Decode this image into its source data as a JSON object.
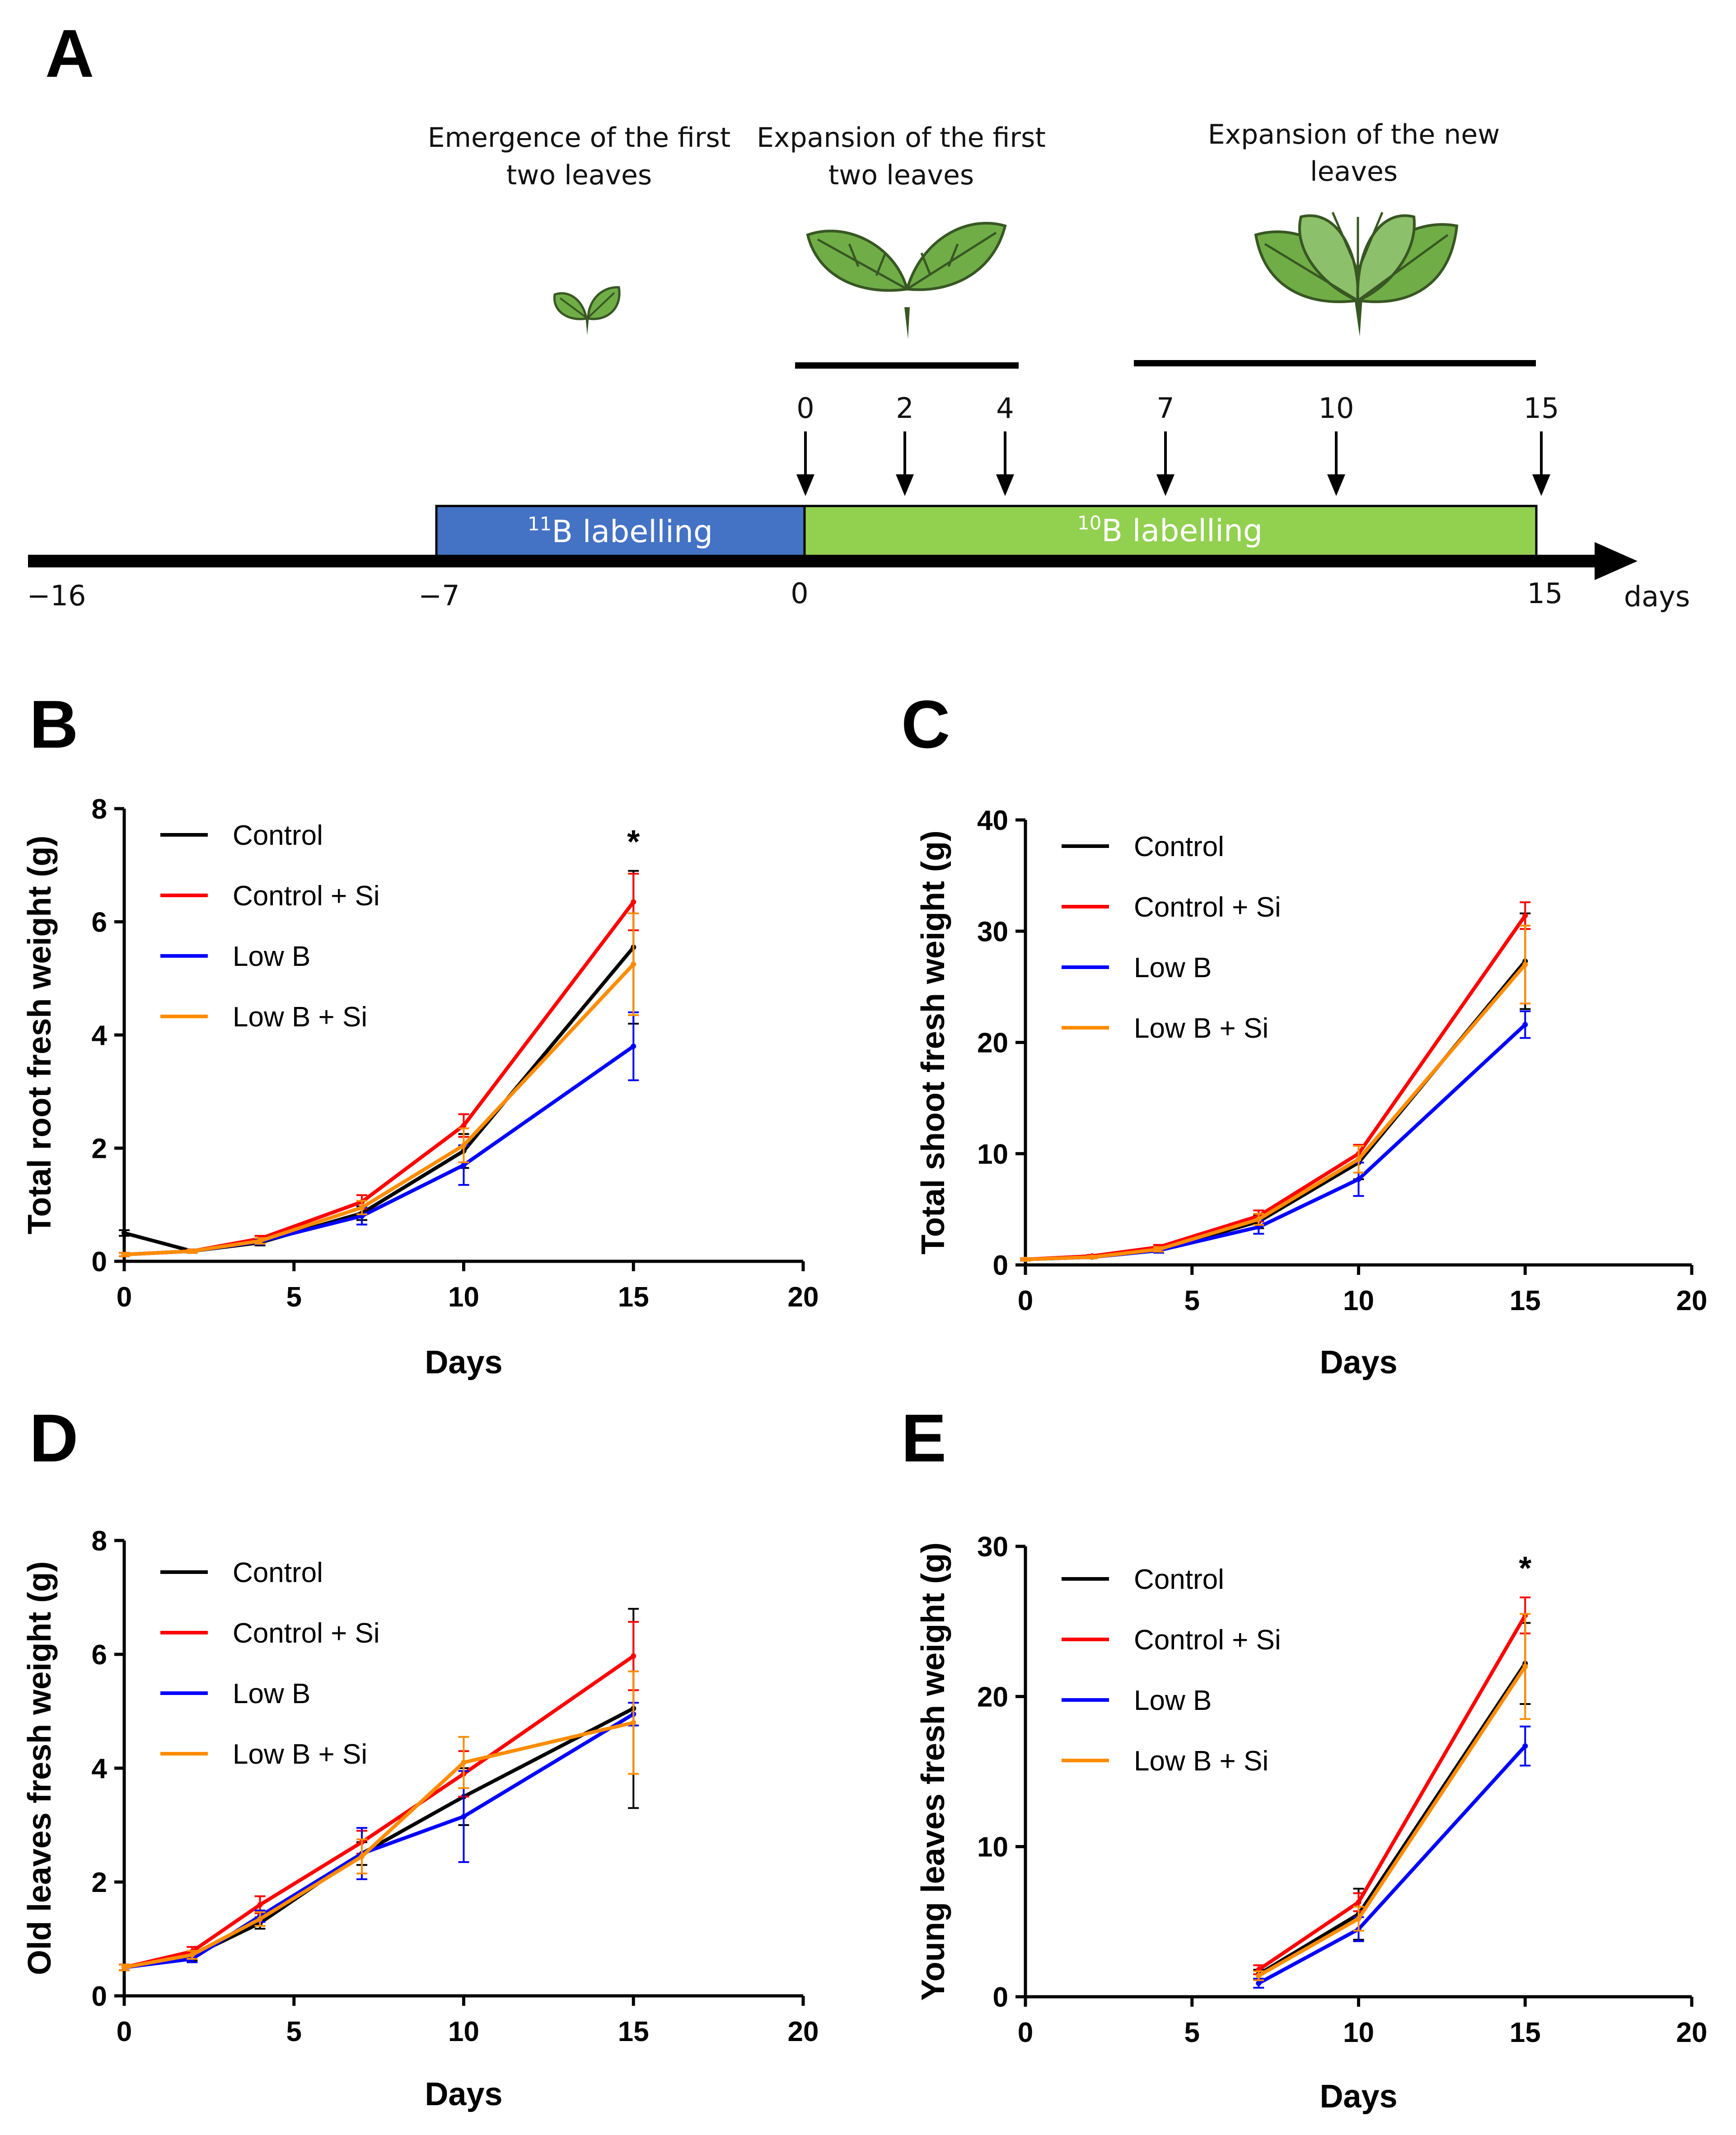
{
  "panel_labels": {
    "A": "A",
    "B": "B",
    "C": "C",
    "D": "D",
    "E": "E"
  },
  "timeline": {
    "stage1": [
      "Emergence of the first",
      "two leaves"
    ],
    "stage2": [
      "Expansion of the first",
      "two leaves"
    ],
    "stage3": [
      "Expansion of the new",
      "leaves"
    ],
    "sampling_days": [
      "0",
      "2",
      "4",
      "7",
      "10",
      "15"
    ],
    "axis_ticks": [
      "−16",
      "−7",
      "0",
      "15"
    ],
    "axis_unit": "days",
    "label_11b_sup": "11",
    "label_11b_rest": "B labelling",
    "label_10b_sup": "10",
    "label_10b_rest": "B labelling",
    "colors": {
      "b11": "#4472c4",
      "b10": "#92d050",
      "leaf": "#70ad47",
      "leaf_dark": "#385723"
    }
  },
  "chart_data": [
    {
      "id": "B",
      "type": "line",
      "xlabel": "Days",
      "ylabel": "Total root fresh weight (g)",
      "xlim": [
        0,
        20
      ],
      "ylim": [
        0,
        8
      ],
      "xticks": [
        "0",
        "5",
        "10",
        "15",
        "20"
      ],
      "yticks": [
        "0",
        "2",
        "4",
        "6",
        "8"
      ],
      "annotations": [
        {
          "text": "*",
          "x": 15
        }
      ],
      "series": [
        {
          "name": "Control",
          "color": "#000000",
          "x": [
            0,
            2,
            4,
            7,
            10,
            15
          ],
          "values": [
            0.5,
            0.18,
            0.33,
            0.85,
            1.95,
            5.55
          ],
          "err": [
            0.05,
            0.03,
            0.05,
            0.12,
            0.3,
            1.35
          ]
        },
        {
          "name": "Control + Si",
          "color": "#ff0000",
          "x": [
            0,
            2,
            4,
            7,
            10,
            15
          ],
          "values": [
            0.12,
            0.18,
            0.4,
            1.05,
            2.4,
            6.35
          ],
          "err": [
            0.03,
            0.03,
            0.05,
            0.12,
            0.2,
            0.5
          ]
        },
        {
          "name": "Low B",
          "color": "#0000ff",
          "x": [
            0,
            2,
            4,
            7,
            10,
            15
          ],
          "values": [
            0.12,
            0.18,
            0.35,
            0.8,
            1.7,
            3.8
          ],
          "err": [
            0.03,
            0.03,
            0.05,
            0.15,
            0.35,
            0.6
          ]
        },
        {
          "name": "Low B + Si",
          "color": "#ff8c00",
          "x": [
            0,
            2,
            4,
            7,
            10,
            15
          ],
          "values": [
            0.12,
            0.18,
            0.36,
            0.95,
            2.05,
            5.25
          ],
          "err": [
            0.03,
            0.03,
            0.05,
            0.12,
            0.3,
            0.9
          ]
        }
      ]
    },
    {
      "id": "C",
      "type": "line",
      "xlabel": "Days",
      "ylabel": "Total shoot fresh weight (g)",
      "xlim": [
        0,
        20
      ],
      "ylim": [
        0,
        40
      ],
      "xticks": [
        "0",
        "5",
        "10",
        "15",
        "20"
      ],
      "yticks": [
        "0",
        "10",
        "20",
        "30",
        "40"
      ],
      "annotations": [],
      "series": [
        {
          "name": "Control",
          "color": "#000000",
          "x": [
            0,
            2,
            4,
            7,
            10,
            15
          ],
          "values": [
            0.5,
            0.7,
            1.3,
            3.9,
            9.2,
            27.3
          ],
          "err": [
            0.1,
            0.1,
            0.2,
            0.6,
            1.5,
            4.3
          ]
        },
        {
          "name": "Control + Si",
          "color": "#ff0000",
          "x": [
            0,
            2,
            4,
            7,
            10,
            15
          ],
          "values": [
            0.5,
            0.8,
            1.6,
            4.4,
            10.0,
            31.4
          ],
          "err": [
            0.1,
            0.1,
            0.2,
            0.5,
            0.8,
            1.2
          ]
        },
        {
          "name": "Low B",
          "color": "#0000ff",
          "x": [
            0,
            2,
            4,
            7,
            10,
            15
          ],
          "values": [
            0.5,
            0.7,
            1.3,
            3.4,
            7.7,
            21.6
          ],
          "err": [
            0.1,
            0.1,
            0.2,
            0.6,
            1.5,
            1.2
          ]
        },
        {
          "name": "Low B + Si",
          "color": "#ff8c00",
          "x": [
            0,
            2,
            4,
            7,
            10,
            15
          ],
          "values": [
            0.5,
            0.7,
            1.4,
            4.1,
            9.5,
            27.0
          ],
          "err": [
            0.1,
            0.1,
            0.2,
            0.5,
            1.2,
            3.5
          ]
        }
      ]
    },
    {
      "id": "D",
      "type": "line",
      "xlabel": "Days",
      "ylabel": "Old leaves fresh weight (g)",
      "xlim": [
        0,
        20
      ],
      "ylim": [
        0,
        8
      ],
      "xticks": [
        "0",
        "5",
        "10",
        "15",
        "20"
      ],
      "yticks": [
        "0",
        "2",
        "4",
        "6",
        "8"
      ],
      "annotations": [],
      "series": [
        {
          "name": "Control",
          "color": "#000000",
          "x": [
            0,
            2,
            4,
            7,
            10,
            15
          ],
          "values": [
            0.5,
            0.7,
            1.28,
            2.5,
            3.5,
            5.05
          ],
          "err": [
            0.05,
            0.08,
            0.1,
            0.2,
            0.5,
            1.75
          ]
        },
        {
          "name": "Control + Si",
          "color": "#ff0000",
          "x": [
            0,
            2,
            4,
            7,
            10,
            15
          ],
          "values": [
            0.5,
            0.78,
            1.6,
            2.7,
            3.9,
            5.97
          ],
          "err": [
            0.05,
            0.08,
            0.15,
            0.2,
            0.4,
            0.6
          ]
        },
        {
          "name": "Low B",
          "color": "#0000ff",
          "x": [
            0,
            2,
            4,
            7,
            10,
            15
          ],
          "values": [
            0.5,
            0.65,
            1.4,
            2.5,
            3.15,
            4.95
          ],
          "err": [
            0.05,
            0.06,
            0.1,
            0.45,
            0.8,
            0.2
          ]
        },
        {
          "name": "Low B + Si",
          "color": "#ff8c00",
          "x": [
            0,
            2,
            4,
            7,
            10,
            15
          ],
          "values": [
            0.5,
            0.72,
            1.35,
            2.45,
            4.1,
            4.8
          ],
          "err": [
            0.05,
            0.07,
            0.12,
            0.3,
            0.45,
            0.9
          ]
        }
      ]
    },
    {
      "id": "E",
      "type": "line",
      "xlabel": "Days",
      "ylabel": "Young leaves fresh weight (g)",
      "xlim": [
        0,
        20
      ],
      "ylim": [
        0,
        30
      ],
      "xticks": [
        "0",
        "5",
        "10",
        "15",
        "20"
      ],
      "yticks": [
        "0",
        "10",
        "20",
        "30"
      ],
      "annotations": [
        {
          "text": "*",
          "x": 15
        }
      ],
      "series": [
        {
          "name": "Control",
          "color": "#000000",
          "x": [
            7,
            10,
            15
          ],
          "values": [
            1.5,
            5.5,
            22.2
          ],
          "err": [
            0.3,
            1.7,
            2.7
          ]
        },
        {
          "name": "Control + Si",
          "color": "#ff0000",
          "x": [
            7,
            10,
            15
          ],
          "values": [
            1.8,
            6.3,
            25.4
          ],
          "err": [
            0.3,
            0.6,
            1.2
          ]
        },
        {
          "name": "Low B",
          "color": "#0000ff",
          "x": [
            7,
            10,
            15
          ],
          "values": [
            0.9,
            4.5,
            16.7
          ],
          "err": [
            0.3,
            0.8,
            1.3
          ]
        },
        {
          "name": "Low B + Si",
          "color": "#ff8c00",
          "x": [
            7,
            10,
            15
          ],
          "values": [
            1.4,
            5.2,
            22.0
          ],
          "err": [
            0.3,
            0.8,
            3.5
          ]
        }
      ]
    }
  ]
}
